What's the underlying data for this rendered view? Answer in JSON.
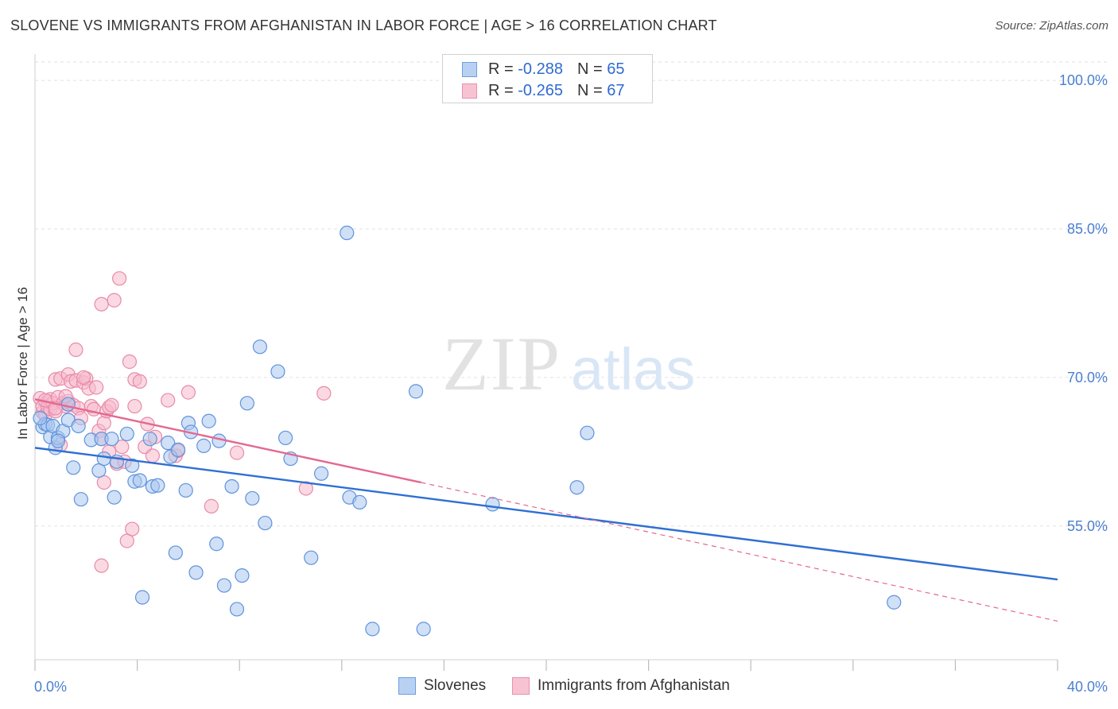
{
  "header": {
    "title": "SLOVENE VS IMMIGRANTS FROM AFGHANISTAN IN LABOR FORCE | AGE > 16 CORRELATION CHART",
    "source": "Source: ZipAtlas.com"
  },
  "watermark": {
    "zip": "ZIP",
    "atlas": "atlas"
  },
  "legend": {
    "r_label": "R =",
    "n_label": "N =",
    "series1": {
      "r": "-0.288",
      "n": "65"
    },
    "series2": {
      "r": "-0.265",
      "n": "67"
    }
  },
  "colors": {
    "blue_fill": "#a9c6ef",
    "blue_stroke": "#5f93dc",
    "blue_line": "#2f6fd3",
    "pink_fill": "#f6b9cc",
    "pink_stroke": "#e88aaa",
    "pink_line": "#e4688f",
    "grid": "#e2e2e2",
    "tick_text": "#4a7fd1"
  },
  "chart_data": {
    "type": "scatter",
    "title": "SLOVENE VS IMMIGRANTS FROM AFGHANISTAN IN LABOR FORCE | AGE > 16 CORRELATION CHART",
    "xlabel": "",
    "ylabel": "In Labor Force | Age > 16",
    "xlim": [
      0,
      40
    ],
    "ylim": [
      41.5,
      102.5
    ],
    "x_tick_labels": [
      "0.0%",
      "40.0%"
    ],
    "y_ticks": [
      55,
      70,
      85,
      100
    ],
    "y_tick_labels": [
      "55.0%",
      "70.0%",
      "85.0%",
      "100.0%"
    ],
    "grid": true,
    "legend_position": "top-center",
    "series": [
      {
        "name": "Slovenes",
        "r": -0.288,
        "n": 65,
        "trend": {
          "x0": 0.0,
          "y0": 62.9,
          "x1": 40.0,
          "y1": 49.6
        },
        "points": [
          [
            0.3,
            65.0
          ],
          [
            0.4,
            65.3
          ],
          [
            0.5,
            65.2
          ],
          [
            0.6,
            64.0
          ],
          [
            0.7,
            65.1
          ],
          [
            0.8,
            62.9
          ],
          [
            0.9,
            63.9
          ],
          [
            1.1,
            64.6
          ],
          [
            1.3,
            65.7
          ],
          [
            1.5,
            60.9
          ],
          [
            1.7,
            65.1
          ],
          [
            1.8,
            57.7
          ],
          [
            2.2,
            63.7
          ],
          [
            2.5,
            60.6
          ],
          [
            2.6,
            63.8
          ],
          [
            2.7,
            61.8
          ],
          [
            3.0,
            63.8
          ],
          [
            3.1,
            57.9
          ],
          [
            3.2,
            61.5
          ],
          [
            3.6,
            64.3
          ],
          [
            3.8,
            61.1
          ],
          [
            3.9,
            59.5
          ],
          [
            4.1,
            59.6
          ],
          [
            4.2,
            47.8
          ],
          [
            4.5,
            63.8
          ],
          [
            4.6,
            59.0
          ],
          [
            4.8,
            59.1
          ],
          [
            5.2,
            63.4
          ],
          [
            5.3,
            62.0
          ],
          [
            5.5,
            52.3
          ],
          [
            5.6,
            62.7
          ],
          [
            5.9,
            58.6
          ],
          [
            6.0,
            65.4
          ],
          [
            6.1,
            64.5
          ],
          [
            6.3,
            50.3
          ],
          [
            6.6,
            63.1
          ],
          [
            6.8,
            65.6
          ],
          [
            7.1,
            53.2
          ],
          [
            7.2,
            63.6
          ],
          [
            7.4,
            49.0
          ],
          [
            7.7,
            59.0
          ],
          [
            7.9,
            46.6
          ],
          [
            8.1,
            50.0
          ],
          [
            8.3,
            67.4
          ],
          [
            8.5,
            57.8
          ],
          [
            8.8,
            73.1
          ],
          [
            9.0,
            55.3
          ],
          [
            9.5,
            70.6
          ],
          [
            9.8,
            63.9
          ],
          [
            10.0,
            61.8
          ],
          [
            10.8,
            51.8
          ],
          [
            11.2,
            60.3
          ],
          [
            12.2,
            84.6
          ],
          [
            12.3,
            57.9
          ],
          [
            12.7,
            57.4
          ],
          [
            13.2,
            44.6
          ],
          [
            14.9,
            68.6
          ],
          [
            15.2,
            44.6
          ],
          [
            17.9,
            57.2
          ],
          [
            21.2,
            58.9
          ],
          [
            21.6,
            64.4
          ],
          [
            33.6,
            47.3
          ],
          [
            0.2,
            65.9
          ],
          [
            0.9,
            63.6
          ],
          [
            1.3,
            67.3
          ]
        ]
      },
      {
        "name": "Immigrants from Afghanistan",
        "r": -0.265,
        "n": 67,
        "trend": {
          "x0": 0.0,
          "y0": 67.8,
          "x1": 15.1,
          "y1": 59.4
        },
        "trend_dashed": {
          "x0": 15.1,
          "y0": 59.4,
          "x1": 40.0,
          "y1": 45.4
        },
        "points": [
          [
            0.2,
            67.9
          ],
          [
            0.3,
            66.5
          ],
          [
            0.3,
            67.1
          ],
          [
            0.4,
            66.2
          ],
          [
            0.5,
            67.6
          ],
          [
            0.5,
            67.0
          ],
          [
            0.6,
            66.8
          ],
          [
            0.6,
            67.8
          ],
          [
            0.7,
            67.4
          ],
          [
            0.8,
            66.6
          ],
          [
            0.8,
            69.8
          ],
          [
            0.9,
            68.0
          ],
          [
            1.0,
            63.2
          ],
          [
            1.0,
            69.9
          ],
          [
            1.1,
            67.4
          ],
          [
            1.2,
            67.1
          ],
          [
            1.3,
            70.3
          ],
          [
            1.3,
            67.6
          ],
          [
            1.4,
            69.6
          ],
          [
            1.5,
            67.2
          ],
          [
            1.6,
            72.8
          ],
          [
            1.6,
            69.7
          ],
          [
            1.7,
            66.9
          ],
          [
            1.8,
            65.9
          ],
          [
            1.9,
            69.5
          ],
          [
            2.0,
            69.9
          ],
          [
            2.1,
            68.9
          ],
          [
            2.2,
            67.1
          ],
          [
            2.3,
            66.8
          ],
          [
            2.4,
            69.0
          ],
          [
            2.5,
            64.6
          ],
          [
            2.6,
            63.8
          ],
          [
            2.6,
            77.4
          ],
          [
            2.6,
            51.0
          ],
          [
            2.7,
            65.4
          ],
          [
            2.7,
            59.4
          ],
          [
            2.8,
            66.6
          ],
          [
            2.9,
            67.0
          ],
          [
            3.0,
            67.2
          ],
          [
            3.1,
            77.8
          ],
          [
            3.2,
            61.3
          ],
          [
            3.3,
            80.0
          ],
          [
            3.4,
            63.0
          ],
          [
            3.5,
            61.5
          ],
          [
            3.6,
            53.5
          ],
          [
            3.7,
            71.6
          ],
          [
            3.8,
            54.7
          ],
          [
            3.9,
            67.1
          ],
          [
            3.9,
            69.8
          ],
          [
            4.1,
            69.6
          ],
          [
            4.3,
            63.0
          ],
          [
            4.4,
            65.3
          ],
          [
            4.6,
            62.1
          ],
          [
            4.7,
            64.0
          ],
          [
            5.2,
            67.7
          ],
          [
            5.5,
            62.1
          ],
          [
            5.6,
            62.6
          ],
          [
            6.0,
            68.5
          ],
          [
            6.9,
            57.0
          ],
          [
            7.9,
            62.4
          ],
          [
            10.6,
            58.8
          ],
          [
            11.3,
            68.4
          ],
          [
            0.4,
            67.7
          ],
          [
            0.8,
            66.9
          ],
          [
            1.2,
            68.1
          ],
          [
            2.9,
            62.5
          ],
          [
            1.9,
            70.0
          ]
        ]
      }
    ]
  }
}
